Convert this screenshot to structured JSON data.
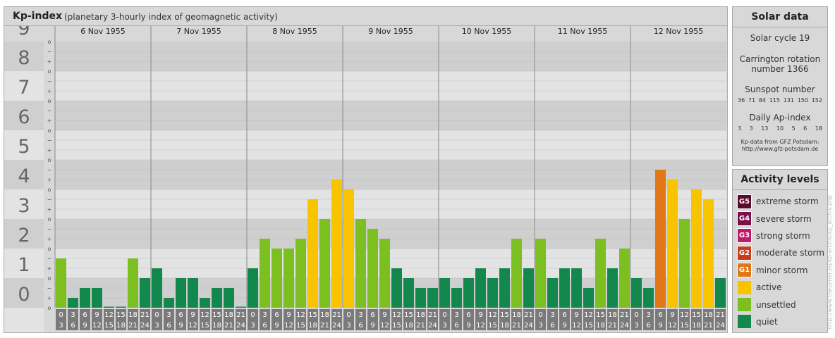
{
  "header": {
    "title": "Kp-index",
    "subtitle": "(planetary 3-hourly index of geomagnetic activity)"
  },
  "chart_data": {
    "type": "bar",
    "y_labels": [
      "0",
      "1",
      "2",
      "3",
      "4",
      "5",
      "6",
      "7",
      "8",
      "9"
    ],
    "sub_labels": [
      "o",
      "+",
      "−",
      "o",
      "+",
      "−",
      "o",
      "+",
      "−",
      "o",
      "+",
      "−",
      "o",
      "+",
      "−",
      "o",
      "+",
      "−",
      "o",
      "+",
      "−",
      "o",
      "+",
      "−",
      "o",
      "+",
      "−",
      "o"
    ],
    "ylim": [
      0,
      9
    ],
    "days": [
      "6 Nov 1955",
      "7 Nov 1955",
      "8 Nov 1955",
      "9 Nov 1955",
      "10 Nov 1955",
      "11 Nov 1955",
      "12 Nov 1955"
    ],
    "hour_start": [
      "0",
      "3",
      "6",
      "9",
      "12",
      "15",
      "18",
      "21"
    ],
    "hour_end": [
      "3",
      "6",
      "9",
      "12",
      "15",
      "18",
      "21",
      "24"
    ],
    "values": [
      [
        1.667,
        0.333,
        0.667,
        0.667,
        0.0,
        0.0,
        1.667,
        1.0
      ],
      [
        1.333,
        0.333,
        1.0,
        1.0,
        0.333,
        0.667,
        0.667,
        0.0
      ],
      [
        1.333,
        2.333,
        2.0,
        2.0,
        2.333,
        3.667,
        3.0,
        4.333
      ],
      [
        4.0,
        3.0,
        2.667,
        2.333,
        1.333,
        1.0,
        0.667,
        0.667
      ],
      [
        1.0,
        0.667,
        1.0,
        1.333,
        1.0,
        1.333,
        2.333,
        1.333
      ],
      [
        2.333,
        1.0,
        1.333,
        1.333,
        0.667,
        2.333,
        1.333,
        2.0
      ],
      [
        1.0,
        0.667,
        4.667,
        4.333,
        3.0,
        4.0,
        3.667,
        1.0
      ]
    ]
  },
  "solar": {
    "title": "Solar data",
    "cycle": "Solar cycle 19",
    "carrington_1": "Carrington rotation",
    "carrington_2": "number 1366",
    "sunspot_label": "Sunspot number",
    "sunspot_values": [
      "36",
      "71",
      "84",
      "115",
      "131",
      "150",
      "152"
    ],
    "ap_label": "Daily Ap-index",
    "ap_values": [
      "3",
      "3",
      "13",
      "10",
      "5",
      "6",
      "18"
    ],
    "credit_1": "Kp-data from GFZ Potsdam:",
    "credit_2": "http://www.gfz-potsdam.de"
  },
  "activity": {
    "title": "Activity levels",
    "levels": [
      {
        "badge": "G5",
        "label": "extreme storm",
        "color": "#5a0a2a"
      },
      {
        "badge": "G4",
        "label": "severe storm",
        "color": "#7a1048"
      },
      {
        "badge": "G3",
        "label": "strong storm",
        "color": "#c0186a"
      },
      {
        "badge": "G2",
        "label": "moderate storm",
        "color": "#c83c1e"
      },
      {
        "badge": "G1",
        "label": "minor storm",
        "color": "#e07818"
      },
      {
        "badge": "",
        "label": "active",
        "color": "#f8c400"
      },
      {
        "badge": "",
        "label": "unsettled",
        "color": "#7cbf20"
      },
      {
        "badge": "",
        "label": "quiet",
        "color": "#12884c"
      }
    ]
  },
  "colors": {
    "quiet": "#12884c",
    "unsettled": "#7cbf20",
    "active": "#f8c400",
    "minor": "#e07818",
    "moderate": "#c83c1e"
  },
  "watermark": "http://www.theusner.eu/kp-archiv/kp_archiv.php"
}
